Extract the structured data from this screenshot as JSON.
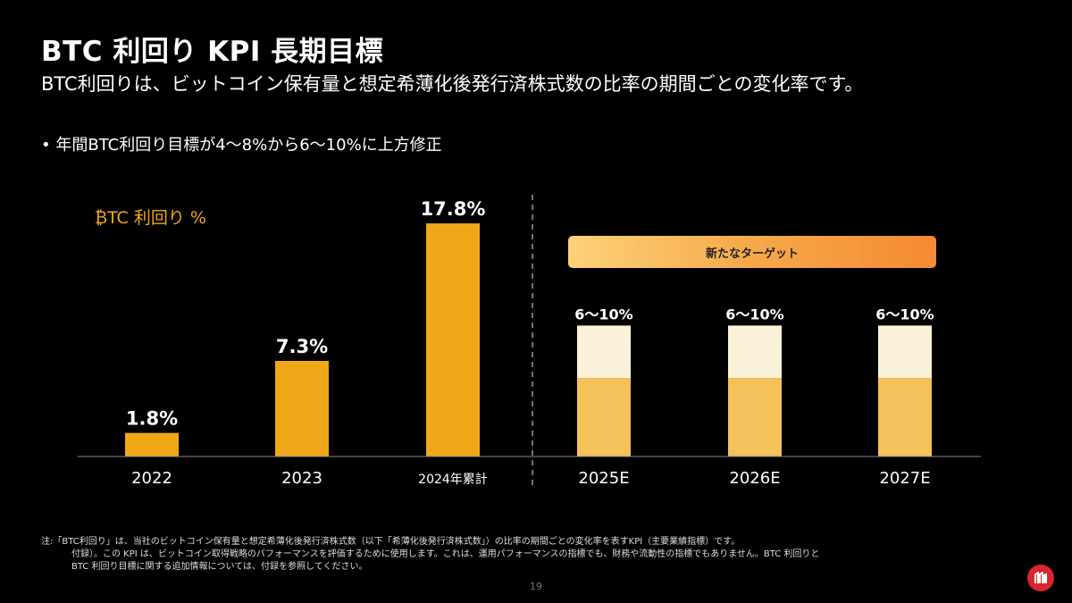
{
  "title": "BTC 利回り KPI 長期目標",
  "subtitle": "BTC利回りは、ビットコイン保有量と想定希薄化後発行済株式数の比率の期間ごとの変化率です。",
  "bullet": "年間BTC利回り目標が4〜8%から6〜10%に上方修正",
  "target_banner": "新たなターゲット",
  "chart_data": {
    "type": "bar",
    "ylabel": "₿TC 利回り %",
    "categories": [
      "2022",
      "2023",
      "2024年累計",
      "2025E",
      "2026E",
      "2027E"
    ],
    "actual": [
      {
        "category": "2022",
        "value": 1.8,
        "label": "1.8%"
      },
      {
        "category": "2023",
        "value": 7.3,
        "label": "7.3%"
      },
      {
        "category": "2024年累計",
        "value": 17.8,
        "label": "17.8%"
      }
    ],
    "targets": [
      {
        "category": "2025E",
        "low": 6,
        "high": 10,
        "label": "6〜10%"
      },
      {
        "category": "2026E",
        "low": 6,
        "high": 10,
        "label": "6〜10%"
      },
      {
        "category": "2027E",
        "low": 6,
        "high": 10,
        "label": "6〜10%"
      }
    ],
    "colors": {
      "actual": "#f0a818",
      "target_low": "#f5c15a",
      "target_high": "#fbf1d8"
    }
  },
  "footnote": {
    "line1": "注:「BTC利回り」は、当社のビットコイン保有量と想定希薄化後発行済株式数（以下「希薄化後発行済株式数」）の比率の期間ごとの変化率を表すKPI（主要業績指標）です。",
    "line2": "付録）。この KPI は、ビットコイン取得戦略のパフォーマンスを評価するために使用します。これは、運用パフォーマンスの指標でも、財務や流動性の指標でもありません。BTC 利回りと",
    "line3": "BTC 利回り目標に関する追加情報については、付録を参照してください。"
  },
  "page_number": "19",
  "logo_color": "#d9262e"
}
